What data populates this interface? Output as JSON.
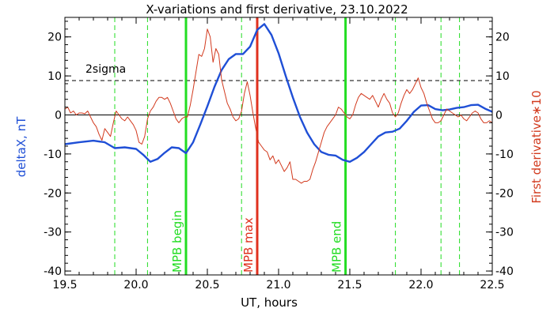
{
  "chart_data": {
    "type": "line",
    "title": "X-variations and first derivative, 23.10.2022",
    "xlabel": "UT, hours",
    "ylabel_left": "deltaX, nT",
    "ylabel_right": "First derivative∗10",
    "xlim": [
      19.5,
      22.5
    ],
    "ylim": [
      -41,
      25
    ],
    "x_ticks": [
      19.5,
      20.0,
      20.5,
      21.0,
      21.5,
      22.0,
      22.5
    ],
    "x_tick_labels": [
      "19.5",
      "20.0",
      "20.5",
      "21.0",
      "21.5",
      "22.0",
      "22.5"
    ],
    "y_ticks": [
      20,
      10,
      0,
      -10,
      -20,
      -30,
      -40
    ],
    "y_tick_labels": [
      "20",
      "10",
      "0",
      "-10",
      "-20",
      "-30",
      "-40"
    ],
    "colors": {
      "deltaX": "#1f4fd6",
      "derivative": "#d23a1e",
      "green_marker": "#22dd22",
      "red_marker": "#e0301e",
      "axis": "#000000"
    },
    "zero_line": 0,
    "sigma_level": 8.8,
    "sigma_label": "2sigma",
    "green_dashed_x": [
      19.85,
      20.08,
      20.74,
      21.82,
      22.14,
      22.27
    ],
    "markers": [
      {
        "label": "MPB begin",
        "x": 20.35,
        "color": "#22dd22"
      },
      {
        "label": "MPB max",
        "x": 20.85,
        "color": "#e0301e"
      },
      {
        "label": "MPB end",
        "x": 21.47,
        "color": "#22dd22"
      }
    ],
    "series": [
      {
        "name": "deltaX",
        "x": [
          19.5,
          19.6,
          19.7,
          19.78,
          19.85,
          19.92,
          20.0,
          20.05,
          20.1,
          20.15,
          20.2,
          20.25,
          20.3,
          20.35,
          20.4,
          20.45,
          20.5,
          20.55,
          20.6,
          20.65,
          20.7,
          20.75,
          20.8,
          20.85,
          20.9,
          20.95,
          21.0,
          21.05,
          21.1,
          21.15,
          21.2,
          21.25,
          21.3,
          21.35,
          21.4,
          21.45,
          21.5,
          21.55,
          21.6,
          21.65,
          21.7,
          21.75,
          21.8,
          21.85,
          21.9,
          21.95,
          22.0,
          22.05,
          22.1,
          22.15,
          22.2,
          22.25,
          22.3,
          22.35,
          22.4,
          22.45,
          22.5
        ],
        "y": [
          -7.5,
          -7.0,
          -6.6,
          -7.0,
          -8.5,
          -8.3,
          -8.7,
          -10.2,
          -12.0,
          -11.3,
          -9.7,
          -8.3,
          -8.5,
          -9.8,
          -7.0,
          -2.5,
          2.2,
          7.2,
          11.5,
          14.3,
          15.6,
          15.6,
          17.5,
          21.8,
          23.3,
          20.5,
          15.8,
          10.0,
          4.5,
          -0.5,
          -4.5,
          -7.5,
          -9.5,
          -10.2,
          -10.4,
          -11.5,
          -12.0,
          -11.0,
          -9.5,
          -7.5,
          -5.5,
          -4.5,
          -4.3,
          -3.5,
          -1.5,
          0.8,
          2.4,
          2.5,
          1.5,
          1.2,
          1.4,
          1.8,
          2.0,
          2.5,
          2.6,
          1.6,
          0.8
        ]
      },
      {
        "name": "derivative",
        "x": [
          19.5,
          19.52,
          19.54,
          19.56,
          19.58,
          19.6,
          19.62,
          19.64,
          19.66,
          19.68,
          19.7,
          19.72,
          19.74,
          19.76,
          19.78,
          19.8,
          19.82,
          19.84,
          19.86,
          19.88,
          19.9,
          19.92,
          19.94,
          19.96,
          19.98,
          20.0,
          20.02,
          20.04,
          20.06,
          20.08,
          20.1,
          20.12,
          20.14,
          20.16,
          20.18,
          20.2,
          20.22,
          20.24,
          20.26,
          20.28,
          20.3,
          20.32,
          20.34,
          20.36,
          20.38,
          20.4,
          20.42,
          20.44,
          20.46,
          20.48,
          20.5,
          20.52,
          20.54,
          20.56,
          20.58,
          20.6,
          20.62,
          20.64,
          20.66,
          20.68,
          20.7,
          20.72,
          20.74,
          20.76,
          20.78,
          20.8,
          20.82,
          20.84,
          20.86,
          20.88,
          20.9,
          20.92,
          20.94,
          20.96,
          20.98,
          21.0,
          21.02,
          21.04,
          21.06,
          21.08,
          21.1,
          21.12,
          21.14,
          21.16,
          21.18,
          21.2,
          21.22,
          21.24,
          21.26,
          21.28,
          21.3,
          21.32,
          21.34,
          21.36,
          21.38,
          21.4,
          21.42,
          21.44,
          21.46,
          21.48,
          21.5,
          21.52,
          21.54,
          21.56,
          21.58,
          21.6,
          21.62,
          21.64,
          21.66,
          21.68,
          21.7,
          21.72,
          21.74,
          21.76,
          21.78,
          21.8,
          21.82,
          21.84,
          21.86,
          21.88,
          21.9,
          21.92,
          21.94,
          21.96,
          21.98,
          22.0,
          22.02,
          22.04,
          22.06,
          22.08,
          22.1,
          22.12,
          22.14,
          22.16,
          22.18,
          22.2,
          22.22,
          22.24,
          22.26,
          22.28,
          22.3,
          22.32,
          22.34,
          22.36,
          22.38,
          22.4,
          22.42,
          22.44,
          22.46,
          22.48,
          22.5
        ],
        "y": [
          1.5,
          2.0,
          0.5,
          1.0,
          0.0,
          0.5,
          0.5,
          0.3,
          1.0,
          -0.5,
          -2.0,
          -3.0,
          -5.0,
          -6.5,
          -3.5,
          -4.5,
          -5.5,
          -2.0,
          1.0,
          0.0,
          -1.0,
          -1.5,
          -0.5,
          -1.5,
          -2.5,
          -4.0,
          -7.0,
          -7.5,
          -5.5,
          -1.0,
          1.0,
          2.0,
          3.5,
          4.5,
          4.5,
          4.0,
          4.5,
          3.0,
          1.0,
          -1.0,
          -2.0,
          -1.0,
          -0.5,
          -0.5,
          2.5,
          6.5,
          11.0,
          15.5,
          15.0,
          17.0,
          22.0,
          20.0,
          13.5,
          17.0,
          15.5,
          9.0,
          6.0,
          3.0,
          1.5,
          -0.5,
          -1.5,
          -1.0,
          1.0,
          5.5,
          8.5,
          5.0,
          0.5,
          -3.5,
          -7.0,
          -8.0,
          -9.0,
          -9.5,
          -11.5,
          -10.5,
          -12.5,
          -11.5,
          -13.0,
          -14.5,
          -13.5,
          -12.0,
          -16.5,
          -16.5,
          -17.0,
          -17.5,
          -17.0,
          -17.0,
          -16.5,
          -14.0,
          -12.0,
          -9.5,
          -7.0,
          -4.5,
          -3.0,
          -2.0,
          -1.0,
          0.0,
          2.0,
          1.5,
          0.5,
          -0.5,
          -1.0,
          0.0,
          2.5,
          4.5,
          5.5,
          5.0,
          4.5,
          4.0,
          5.0,
          3.5,
          2.0,
          4.0,
          5.5,
          4.0,
          3.0,
          0.5,
          -0.5,
          0.5,
          3.0,
          5.0,
          6.5,
          5.5,
          6.5,
          8.0,
          9.5,
          7.0,
          5.5,
          3.0,
          1.0,
          -1.0,
          -2.0,
          -2.0,
          -1.5,
          0.0,
          1.5,
          1.0,
          0.5,
          0.0,
          -0.5,
          0.0,
          -1.0,
          -1.5,
          -0.5,
          0.5,
          1.0,
          0.5,
          -1.0,
          -2.0,
          -2.0,
          -1.5,
          -2.0
        ]
      }
    ]
  }
}
